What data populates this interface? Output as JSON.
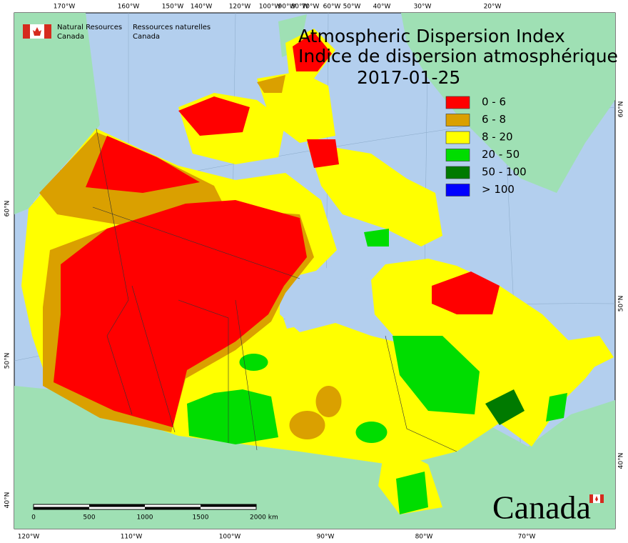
{
  "header": {
    "logo_en": [
      "Natural Resources",
      "Canada"
    ],
    "logo_fr": [
      "Ressources naturelles",
      "Canada"
    ]
  },
  "title": {
    "english": "Atmospheric Dispersion Index",
    "french": "Indice de dispersion atmosphérique",
    "date": "2017-01-25"
  },
  "legend": [
    {
      "label": "0 - 6",
      "color": "#ff0000"
    },
    {
      "label": "6 - 8",
      "color": "#daa000"
    },
    {
      "label": "8 - 20",
      "color": "#ffff00"
    },
    {
      "label": "20 - 50",
      "color": "#00dd00"
    },
    {
      "label": "50 - 100",
      "color": "#007a00"
    },
    {
      "label": "> 100",
      "color": "#0000ff"
    }
  ],
  "top_labels": [
    "170°W",
    "160°W",
    "150°W",
    "140°W",
    "120°W",
    "100°W",
    "90°W",
    "80°W",
    "70°W",
    "60°W",
    "50°W",
    "40°W",
    "30°W",
    "20°W"
  ],
  "bottom_labels": [
    "120°W",
    "110°W",
    "100°W",
    "90°W",
    "80°W",
    "70°W"
  ],
  "left_labels": [
    "60°N",
    "50°N",
    "40°N"
  ],
  "right_labels": [
    "60°N",
    "50°N",
    "40°N"
  ],
  "scale_bar": [
    "0",
    "500",
    "1000",
    "1500",
    "2000 km"
  ],
  "wordmark": "Canada"
}
